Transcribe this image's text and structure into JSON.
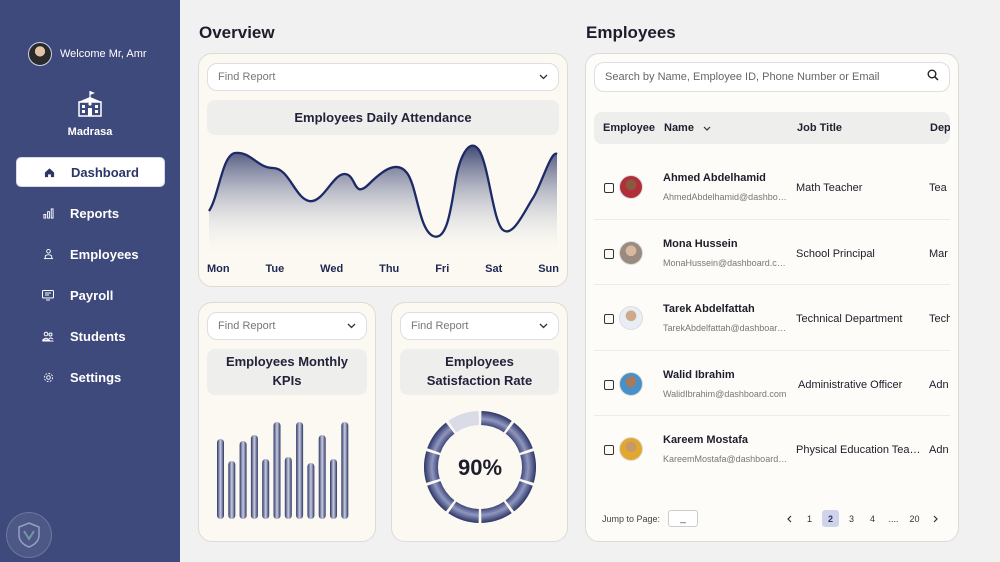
{
  "sidebar": {
    "welcome": "Welcome Mr, Amr",
    "brand": "Madrasa",
    "items": [
      {
        "label": "Dashboard",
        "icon": "home-icon",
        "active": true
      },
      {
        "label": "Reports",
        "icon": "bar-chart-icon"
      },
      {
        "label": "Employees",
        "icon": "people-icon"
      },
      {
        "label": "Payroll",
        "icon": "monitor-icon"
      },
      {
        "label": "Students",
        "icon": "students-icon"
      },
      {
        "label": "Settings",
        "icon": "gear-icon"
      }
    ]
  },
  "overview": {
    "title": "Overview",
    "attendance": {
      "dropdown": "Find Report",
      "title": "Employees Daily Attendance",
      "days": [
        "Mon",
        "Tue",
        "Wed",
        "Thu",
        "Fri",
        "Sat",
        "Sun"
      ]
    },
    "kpis": {
      "dropdown": "Find Report",
      "title": "Employees Monthly KPIs",
      "bar_values": [
        0.8,
        0.58,
        0.78,
        0.84,
        0.6,
        0.97,
        0.62,
        0.97,
        0.56,
        0.84,
        0.6,
        0.97
      ]
    },
    "satisfaction": {
      "dropdown": "Find Report",
      "title": "Employees Satisfaction Rate",
      "value_label": "90%",
      "value": 0.9
    }
  },
  "employees": {
    "title": "Employees",
    "search_placeholder": "Search by Name, Employee ID, Phone Number or Email",
    "columns": {
      "employee": "Employee",
      "name": "Name",
      "job": "Job Title",
      "dept": "Dep"
    },
    "rows": [
      {
        "name": "Ahmed Abdelhamid",
        "email": "AhmedAbdelhamid@dashboard.com",
        "job": "Math Teacher",
        "dept": "Tea"
      },
      {
        "name": "Mona Hussein",
        "email": "MonaHussein@dashboard.com",
        "job": "School Principal",
        "dept": "Mar"
      },
      {
        "name": "Tarek Abdelfattah",
        "email": "TarekAbdelfattah@dashboard.com",
        "job": "Technical Department",
        "dept": "Tech"
      },
      {
        "name": "Walid Ibrahim",
        "email": "WalidIbrahim@dashboard.com",
        "job": "Administrative Officer",
        "dept": "Adn"
      },
      {
        "name": "Kareem Mostafa",
        "email": "KareemMostafa@dashboard.com",
        "job": "Physical Education Teacher",
        "dept": "Adn"
      }
    ],
    "jump_label": "Jump to Page:",
    "jump_value": "_",
    "pages": [
      "1",
      "2",
      "3",
      "4",
      "....",
      "20"
    ],
    "current_page": "2",
    "colors": {
      "accent": "#3f4a7c",
      "bar_dark": "#2c3566"
    }
  }
}
